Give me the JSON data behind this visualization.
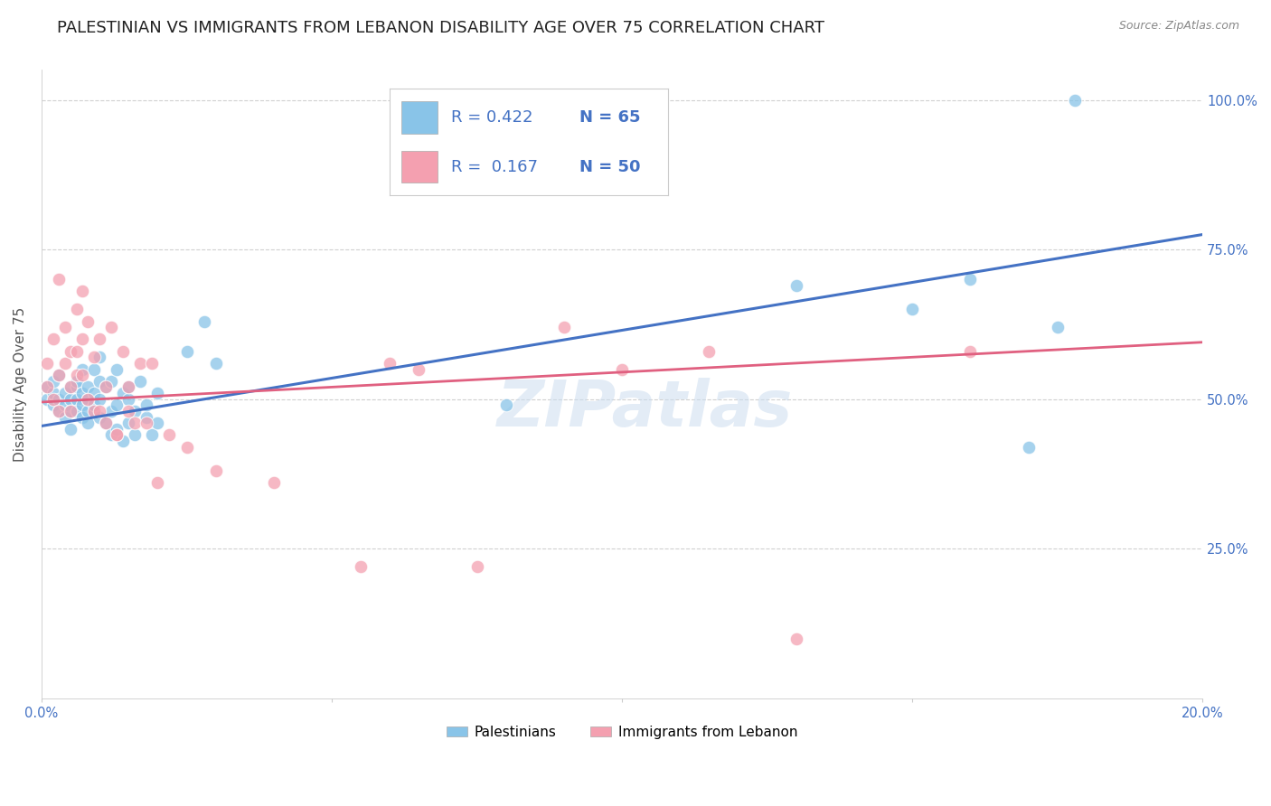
{
  "title": "PALESTINIAN VS IMMIGRANTS FROM LEBANON DISABILITY AGE OVER 75 CORRELATION CHART",
  "source": "Source: ZipAtlas.com",
  "ylabel": "Disability Age Over 75",
  "xlim": [
    0.0,
    0.2
  ],
  "ylim": [
    0.0,
    1.05
  ],
  "xticks": [
    0.0,
    0.05,
    0.1,
    0.15,
    0.2
  ],
  "xtick_labels": [
    "0.0%",
    "",
    "",
    "",
    "20.0%"
  ],
  "ytick_labels_right": [
    "100.0%",
    "75.0%",
    "50.0%",
    "25.0%"
  ],
  "ytick_vals_right": [
    1.0,
    0.75,
    0.5,
    0.25
  ],
  "legend_blue_r": "R = 0.422",
  "legend_blue_n": "N = 65",
  "legend_pink_r": "R =  0.167",
  "legend_pink_n": "N = 50",
  "legend_label_blue": "Palestinians",
  "legend_label_pink": "Immigrants from Lebanon",
  "blue_color": "#89c4e8",
  "pink_color": "#f4a0b0",
  "blue_line_color": "#4472C4",
  "pink_line_color": "#E06080",
  "watermark": "ZIPatlas",
  "blue_scatter_x": [
    0.001,
    0.001,
    0.002,
    0.002,
    0.002,
    0.003,
    0.003,
    0.003,
    0.004,
    0.004,
    0.004,
    0.005,
    0.005,
    0.005,
    0.005,
    0.006,
    0.006,
    0.006,
    0.006,
    0.007,
    0.007,
    0.007,
    0.007,
    0.008,
    0.008,
    0.008,
    0.008,
    0.009,
    0.009,
    0.009,
    0.01,
    0.01,
    0.01,
    0.01,
    0.011,
    0.011,
    0.012,
    0.012,
    0.012,
    0.013,
    0.013,
    0.013,
    0.014,
    0.014,
    0.015,
    0.015,
    0.015,
    0.016,
    0.016,
    0.017,
    0.018,
    0.018,
    0.019,
    0.02,
    0.02,
    0.025,
    0.028,
    0.03,
    0.08,
    0.13,
    0.15,
    0.16,
    0.17,
    0.175,
    0.178
  ],
  "blue_scatter_y": [
    0.5,
    0.52,
    0.49,
    0.51,
    0.53,
    0.48,
    0.5,
    0.54,
    0.49,
    0.51,
    0.47,
    0.5,
    0.52,
    0.48,
    0.45,
    0.5,
    0.52,
    0.48,
    0.53,
    0.49,
    0.51,
    0.47,
    0.55,
    0.5,
    0.52,
    0.48,
    0.46,
    0.55,
    0.49,
    0.51,
    0.53,
    0.47,
    0.5,
    0.57,
    0.52,
    0.46,
    0.48,
    0.53,
    0.44,
    0.49,
    0.55,
    0.45,
    0.51,
    0.43,
    0.5,
    0.52,
    0.46,
    0.48,
    0.44,
    0.53,
    0.47,
    0.49,
    0.44,
    0.51,
    0.46,
    0.58,
    0.63,
    0.56,
    0.49,
    0.69,
    0.65,
    0.7,
    0.42,
    0.62,
    1.0
  ],
  "pink_scatter_x": [
    0.001,
    0.001,
    0.002,
    0.002,
    0.003,
    0.003,
    0.003,
    0.004,
    0.004,
    0.005,
    0.005,
    0.005,
    0.006,
    0.006,
    0.006,
    0.007,
    0.007,
    0.007,
    0.008,
    0.008,
    0.009,
    0.009,
    0.01,
    0.01,
    0.011,
    0.011,
    0.012,
    0.013,
    0.013,
    0.014,
    0.015,
    0.015,
    0.016,
    0.017,
    0.018,
    0.019,
    0.02,
    0.022,
    0.025,
    0.03,
    0.04,
    0.055,
    0.06,
    0.065,
    0.075,
    0.09,
    0.1,
    0.115,
    0.13,
    0.16
  ],
  "pink_scatter_y": [
    0.52,
    0.56,
    0.5,
    0.6,
    0.48,
    0.54,
    0.7,
    0.56,
    0.62,
    0.52,
    0.58,
    0.48,
    0.54,
    0.65,
    0.58,
    0.6,
    0.54,
    0.68,
    0.5,
    0.63,
    0.48,
    0.57,
    0.6,
    0.48,
    0.52,
    0.46,
    0.62,
    0.44,
    0.44,
    0.58,
    0.48,
    0.52,
    0.46,
    0.56,
    0.46,
    0.56,
    0.36,
    0.44,
    0.42,
    0.38,
    0.36,
    0.22,
    0.56,
    0.55,
    0.22,
    0.62,
    0.55,
    0.58,
    0.1,
    0.58
  ],
  "blue_line_x": [
    0.0,
    0.2
  ],
  "blue_line_y": [
    0.455,
    0.775
  ],
  "pink_line_x": [
    0.0,
    0.2
  ],
  "pink_line_y": [
    0.495,
    0.595
  ],
  "background_color": "#ffffff",
  "grid_color": "#d0d0d0",
  "title_fontsize": 13,
  "axis_label_fontsize": 11,
  "tick_fontsize": 10.5,
  "legend_fontsize": 13
}
